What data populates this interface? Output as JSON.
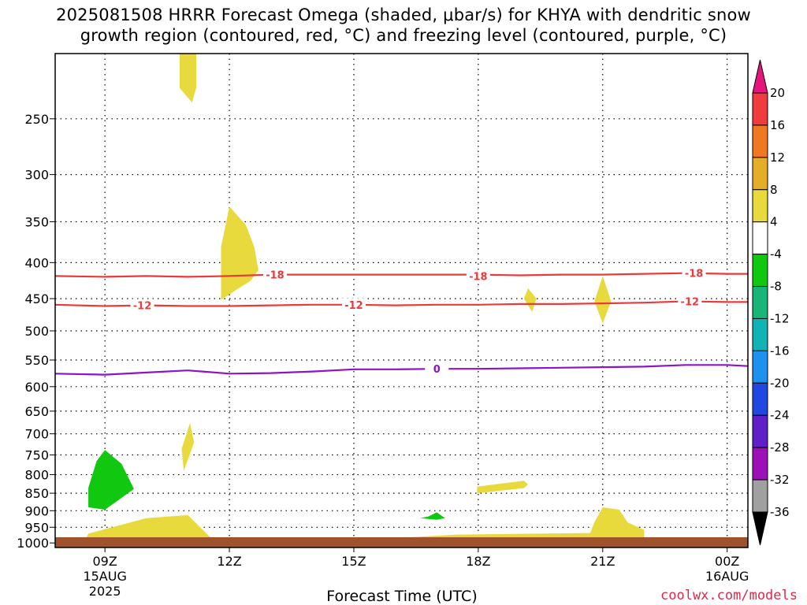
{
  "title": {
    "line1": "2025081508 HRRR Forecast Omega (shaded, μbar/s) for KHYA with dendritic snow",
    "line2": "growth region (contoured, red, °C) and freezing level (contoured, purple, °C)"
  },
  "xlabel": "Forecast Time (UTC)",
  "credit": "coolwx.com/models",
  "chart_data": {
    "type": "heatmap",
    "title": "2025081508 HRRR Forecast Omega (shaded, μbar/s) for KHYA with dendritic snow growth region (contoured, red, °C) and freezing level (contoured, purple, °C)",
    "xlabel": "Forecast Time (UTC)",
    "ylabel": "",
    "x_range_hours_utc": [
      7.8,
      24.5
    ],
    "y_range_mb": [
      1015,
      202
    ],
    "y_scale": "log-pressure",
    "grid": true,
    "x_ticks": [
      {
        "hour": 9,
        "label": "09Z",
        "sub1": "15AUG",
        "sub2": "2025"
      },
      {
        "hour": 12,
        "label": "12Z",
        "sub1": "",
        "sub2": ""
      },
      {
        "hour": 15,
        "label": "15Z",
        "sub1": "",
        "sub2": ""
      },
      {
        "hour": 18,
        "label": "18Z",
        "sub1": "",
        "sub2": ""
      },
      {
        "hour": 21,
        "label": "21Z",
        "sub1": "",
        "sub2": ""
      },
      {
        "hour": 24,
        "label": "00Z",
        "sub1": "16AUG",
        "sub2": ""
      }
    ],
    "y_ticks": [
      "250",
      "300",
      "350",
      "400",
      "450",
      "500",
      "550",
      "600",
      "650",
      "700",
      "750",
      "800",
      "850",
      "900",
      "950",
      "1000"
    ],
    "colorbar": {
      "labels": [
        "20",
        "16",
        "12",
        "8",
        "4",
        "-4",
        "-8",
        "-12",
        "-16",
        "-20",
        "-24",
        "-28",
        "-32",
        "-36"
      ],
      "colors": [
        "#e8147e",
        "#f03c3c",
        "#f07820",
        "#e6ad29",
        "#e8d93c",
        "#ffffff",
        "#10c810",
        "#18b478",
        "#10b4b4",
        "#1e90f0",
        "#2048e0",
        "#6020c8",
        "#9c10b8",
        "#a0a0a0",
        "#000000"
      ]
    },
    "contours": [
      {
        "name": "-18",
        "color": "#e83c3c",
        "points": [
          [
            7.8,
            418
          ],
          [
            9,
            419
          ],
          [
            10,
            418
          ],
          [
            11,
            419
          ],
          [
            12,
            418
          ],
          [
            13,
            416
          ],
          [
            14,
            416
          ],
          [
            15,
            416
          ],
          [
            16,
            416
          ],
          [
            17,
            416
          ],
          [
            18,
            416
          ],
          [
            19,
            417
          ],
          [
            20,
            416
          ],
          [
            21,
            416
          ],
          [
            22,
            415
          ],
          [
            23,
            414
          ],
          [
            24,
            415
          ],
          [
            24.5,
            415
          ]
        ],
        "labels": [
          [
            13.1,
            416
          ],
          [
            18.0,
            418
          ],
          [
            23.2,
            414
          ]
        ]
      },
      {
        "name": "-12",
        "color": "#e83c3c",
        "points": [
          [
            7.8,
            459
          ],
          [
            9,
            461
          ],
          [
            10,
            460
          ],
          [
            11,
            461
          ],
          [
            12,
            461
          ],
          [
            13,
            460
          ],
          [
            14,
            459
          ],
          [
            15,
            459
          ],
          [
            16,
            460
          ],
          [
            17,
            459
          ],
          [
            18,
            459
          ],
          [
            19,
            458
          ],
          [
            20,
            458
          ],
          [
            21,
            457
          ],
          [
            22,
            456
          ],
          [
            23,
            454
          ],
          [
            24,
            455
          ],
          [
            24.5,
            455
          ]
        ],
        "labels": [
          [
            9.9,
            460
          ],
          [
            15.0,
            459
          ],
          [
            23.1,
            454
          ]
        ]
      },
      {
        "name": "0",
        "color": "#8c14c8",
        "points": [
          [
            7.8,
            575
          ],
          [
            9,
            577
          ],
          [
            10,
            573
          ],
          [
            11,
            569
          ],
          [
            12,
            575
          ],
          [
            13,
            574
          ],
          [
            14,
            571
          ],
          [
            15,
            567
          ],
          [
            16,
            567
          ],
          [
            17,
            566
          ],
          [
            18,
            566
          ],
          [
            19,
            565
          ],
          [
            20,
            564
          ],
          [
            21,
            563
          ],
          [
            22,
            562
          ],
          [
            23,
            559
          ],
          [
            24,
            559
          ],
          [
            24.5,
            561
          ]
        ],
        "labels": [
          [
            17.0,
            566
          ]
        ]
      }
    ],
    "shaded": [
      {
        "value": "4 to 8",
        "color": "#e8d93c",
        "points": [
          [
            10.8,
            202
          ],
          [
            11.2,
            202
          ],
          [
            11.2,
            226
          ],
          [
            11.1,
            237
          ],
          [
            10.8,
            226
          ]
        ]
      },
      {
        "value": "4 to 8",
        "color": "#e8d93c",
        "points": [
          [
            11.8,
            452
          ],
          [
            11.8,
            380
          ],
          [
            12,
            333
          ],
          [
            12.4,
            354
          ],
          [
            12.6,
            380
          ],
          [
            12.7,
            410
          ],
          [
            12.5,
            425
          ],
          [
            12.2,
            436
          ]
        ]
      },
      {
        "value": "4 to 8",
        "color": "#e8d93c",
        "points": [
          [
            19.3,
            470
          ],
          [
            19.1,
            450
          ],
          [
            19.2,
            435
          ],
          [
            19.4,
            450
          ]
        ]
      },
      {
        "value": "4 to 8",
        "color": "#e8d93c",
        "points": [
          [
            21,
            488
          ],
          [
            20.8,
            454
          ],
          [
            21,
            418
          ],
          [
            21.2,
            454
          ]
        ]
      },
      {
        "value": "4 to 8",
        "color": "#e8d93c",
        "points": [
          [
            10.9,
            790
          ],
          [
            10.85,
            735
          ],
          [
            11.05,
            676
          ],
          [
            11.15,
            720
          ]
        ]
      },
      {
        "value": "4 to 8",
        "color": "#e8d93c",
        "points": [
          [
            8.5,
            998
          ],
          [
            8.6,
            970
          ],
          [
            10,
            922
          ],
          [
            11,
            913
          ],
          [
            11.6,
            990
          ],
          [
            11.2,
            997
          ],
          [
            9,
            1000
          ]
        ]
      },
      {
        "value": "4 to 8",
        "color": "#e8d93c",
        "points": [
          [
            17.97,
            850
          ],
          [
            17.97,
            832
          ],
          [
            19.1,
            816
          ],
          [
            19.2,
            826
          ],
          [
            19.1,
            836
          ]
        ]
      },
      {
        "value": "4 to 8",
        "color": "#e8d93c",
        "points": [
          [
            15.8,
            998
          ],
          [
            16,
            984
          ],
          [
            17.5,
            973
          ],
          [
            19.5,
            970
          ],
          [
            20.7,
            968
          ],
          [
            20.8,
            934
          ],
          [
            21,
            890
          ],
          [
            21.4,
            897
          ],
          [
            21.6,
            935
          ],
          [
            22.0,
            958
          ],
          [
            22.0,
            999
          ],
          [
            17,
            1000
          ]
        ]
      },
      {
        "value": "-8 to -4",
        "color": "#10c810",
        "points": [
          [
            8.6,
            890
          ],
          [
            8.6,
            835
          ],
          [
            8.8,
            765
          ],
          [
            9,
            738
          ],
          [
            9.4,
            772
          ],
          [
            9.7,
            838
          ],
          [
            9.4,
            863
          ],
          [
            9,
            897
          ]
        ]
      },
      {
        "value": "-8 to -4",
        "color": "#10c810",
        "points": [
          [
            16.6,
            922
          ],
          [
            16.8,
            917
          ],
          [
            17,
            905
          ],
          [
            17.2,
            922
          ],
          [
            17,
            927
          ]
        ]
      }
    ],
    "ground_color": "#a0522d"
  }
}
